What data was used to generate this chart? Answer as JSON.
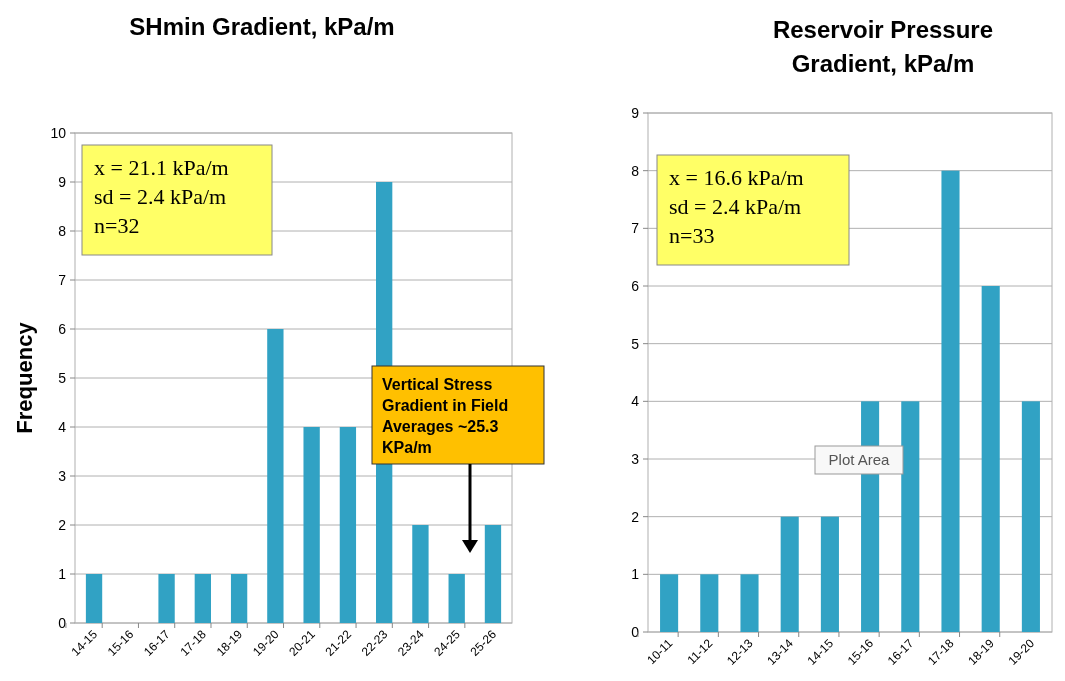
{
  "chart_data": [
    {
      "type": "bar",
      "title": "SHmin Gradient, kPa/m",
      "ylabel": "Frequency",
      "categories": [
        "14-15",
        "15-16",
        "16-17",
        "17-18",
        "18-19",
        "19-20",
        "20-21",
        "21-22",
        "22-23",
        "23-24",
        "24-25",
        "25-26"
      ],
      "values": [
        1,
        0,
        1,
        1,
        1,
        6,
        4,
        4,
        9,
        2,
        1,
        2
      ],
      "color": "#31a2c4",
      "ylim": [
        0,
        10
      ],
      "yticks": [
        0,
        1,
        2,
        3,
        4,
        5,
        6,
        7,
        8,
        9,
        10
      ],
      "grid": "y",
      "annotations": [
        "x = 21.1 kPa/m",
        "sd = 2.4 kPa/m",
        "n=32",
        "Vertical Stress Gradient in Field Averages ~25.3 KPa/m"
      ]
    },
    {
      "type": "bar",
      "title": "Reservoir Pressure Gradient, kPa/m",
      "categories": [
        "10-11",
        "11-12",
        "12-13",
        "13-14",
        "14-15",
        "15-16",
        "16-17",
        "17-18",
        "18-19",
        "19-20"
      ],
      "values": [
        1,
        1,
        1,
        2,
        2,
        4,
        4,
        8,
        6,
        4
      ],
      "color": "#31a2c4",
      "ylim": [
        0,
        9
      ],
      "yticks": [
        0,
        1,
        2,
        3,
        4,
        5,
        6,
        7,
        8,
        9
      ],
      "grid": "y",
      "annotations": [
        "x = 16.6 kPa/m",
        "sd = 2.4 kPa/m",
        "n=33",
        "Plot Area"
      ]
    }
  ]
}
